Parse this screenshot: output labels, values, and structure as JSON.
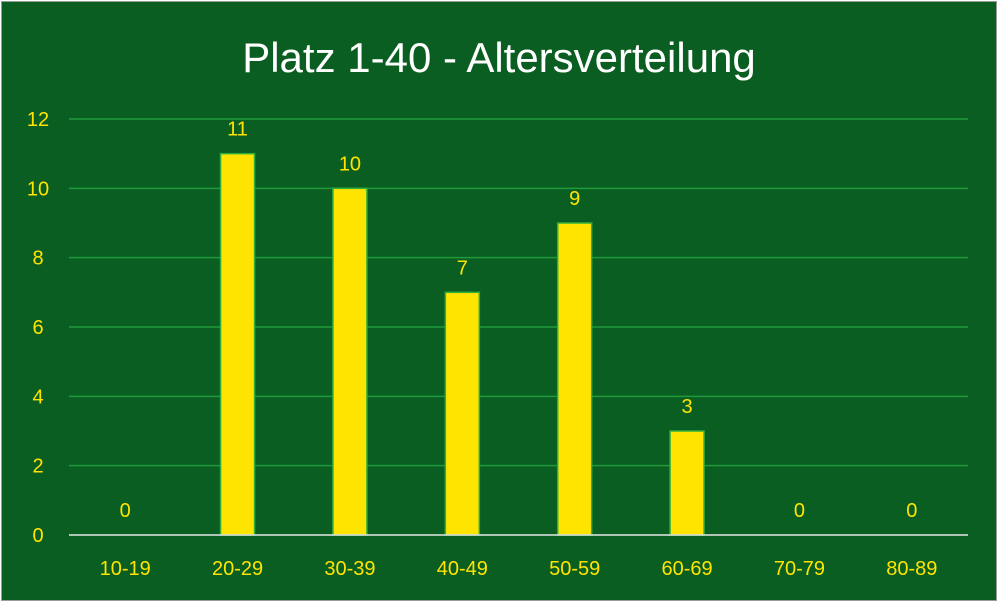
{
  "chart_data": {
    "type": "bar",
    "title": "Platz 1-40 - Altersverteilung",
    "categories": [
      "10-19",
      "20-29",
      "30-39",
      "40-49",
      "50-59",
      "60-69",
      "70-79",
      "80-89"
    ],
    "values": [
      0,
      11,
      10,
      7,
      9,
      3,
      0,
      0
    ],
    "ylim": [
      0,
      12
    ],
    "yticks": [
      0,
      2,
      4,
      6,
      8,
      10,
      12
    ],
    "grid": true,
    "data_labels": true,
    "colors": {
      "background": "#0b5e22",
      "bar": "#ffe400",
      "bar_border": "#2fae3e",
      "grid": "#1f9a3a",
      "axis": "#e6e6e6",
      "text": "#ffe400",
      "title": "#ffffff"
    }
  }
}
